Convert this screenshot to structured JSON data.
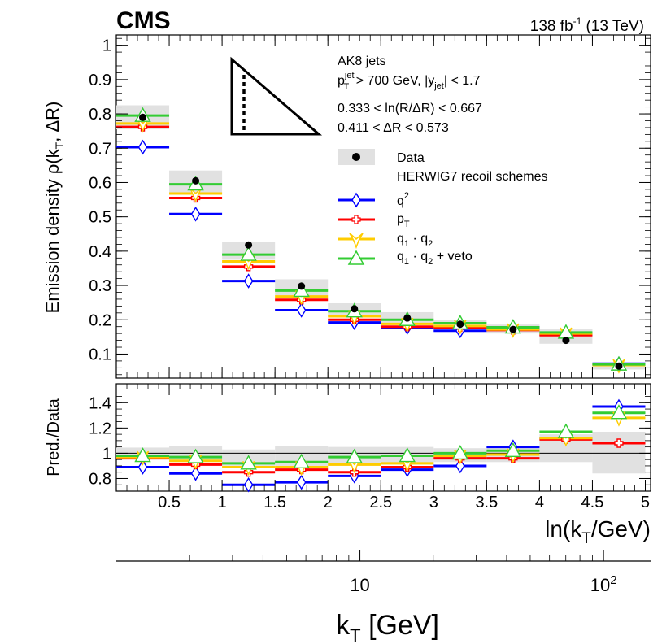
{
  "header": {
    "experiment": "CMS",
    "lumi": "138 fb",
    "lumi_exp": "-1",
    "energy": "(13 TeV)"
  },
  "colors": {
    "data": "#000000",
    "data_band": "#e1e1e1",
    "q2": "#0000ff",
    "pt": "#ff0000",
    "q1q2": "#ffcc00",
    "q1q2veto": "#33cc33"
  },
  "annotations": {
    "jets": "AK8 jets",
    "cut1_a": "p",
    "cut1_sup": "jet",
    "cut1_sub": "T",
    "cut1_b": " > 700 GeV, |y",
    "cut1_sub2": "jet",
    "cut1_c": "| < 1.7",
    "cut2": "0.333 < ln(R/ΔR) < 0.667",
    "cut3": "0.411 < ΔR < 0.573"
  },
  "legend": {
    "data": "Data",
    "group_title": "HERWIG7 recoil schemes",
    "q2_base": "q",
    "q2_sup": "2",
    "pt_base": "p",
    "pt_sub": "T",
    "q1q2_a": "q",
    "q1q2_sub1": "1",
    "q1q2_dot": " · q",
    "q1q2_sub2": "2",
    "veto_a": "q",
    "veto_sub1": "1",
    "veto_dot": " · q",
    "veto_sub2": "2",
    "veto_tail": " + veto"
  },
  "chart_data": {
    "type": "histogram",
    "x_edges": [
      0.0,
      0.5,
      1.0,
      1.5,
      2.0,
      2.5,
      3.0,
      3.5,
      4.0,
      4.5,
      5.0
    ],
    "top_panel": {
      "ylabel_a": "Emission density ρ(k",
      "ylabel_sub": "T",
      "ylabel_b": ", ΔR)",
      "ylim": [
        0.03,
        1.03
      ],
      "yticks": [
        0.1,
        0.2,
        0.3,
        0.4,
        0.5,
        0.6,
        0.7,
        0.8,
        0.9,
        1.0
      ],
      "ytick_labels": [
        "0.1",
        "0.2",
        "0.3",
        "0.4",
        "0.5",
        "0.6",
        "0.7",
        "0.8",
        "0.9",
        "1"
      ],
      "data_values": [
        0.79,
        0.605,
        0.418,
        0.298,
        0.232,
        0.205,
        0.187,
        0.172,
        0.14,
        0.065
      ],
      "data_band": [
        [
          0.755,
          0.825
        ],
        [
          0.568,
          0.635
        ],
        [
          0.375,
          0.428
        ],
        [
          0.27,
          0.318
        ],
        [
          0.21,
          0.248
        ],
        [
          0.188,
          0.222
        ],
        [
          0.174,
          0.2
        ],
        [
          0.16,
          0.186
        ],
        [
          0.13,
          0.172
        ],
        [
          0.055,
          0.075
        ]
      ],
      "series": [
        {
          "name": "q2",
          "values": [
            0.703,
            0.508,
            0.313,
            0.228,
            0.192,
            0.178,
            0.168,
            0.178,
            0.157,
            0.072
          ]
        },
        {
          "name": "pT",
          "values": [
            0.762,
            0.555,
            0.355,
            0.258,
            0.2,
            0.18,
            0.178,
            0.17,
            0.155,
            0.068
          ]
        },
        {
          "name": "q1q2",
          "values": [
            0.772,
            0.568,
            0.37,
            0.268,
            0.21,
            0.188,
            0.182,
            0.172,
            0.16,
            0.068
          ]
        },
        {
          "name": "q1q2veto",
          "values": [
            0.795,
            0.595,
            0.39,
            0.285,
            0.225,
            0.2,
            0.19,
            0.178,
            0.163,
            0.07
          ]
        }
      ]
    },
    "ratio_panel": {
      "ylabel": "Pred./Data",
      "ylim": [
        0.7,
        1.55
      ],
      "yticks": [
        0.8,
        1.0,
        1.2,
        1.4
      ],
      "ytick_labels": [
        "0.8",
        "1",
        "1.2",
        "1.4"
      ],
      "band": [
        [
          0.955,
          1.045
        ],
        [
          0.94,
          1.06
        ],
        [
          0.9,
          1.03
        ],
        [
          0.9,
          1.06
        ],
        [
          0.9,
          1.05
        ],
        [
          0.91,
          1.05
        ],
        [
          0.93,
          1.04
        ],
        [
          0.93,
          1.06
        ],
        [
          0.93,
          1.15
        ],
        [
          0.84,
          1.17
        ]
      ],
      "series": [
        {
          "name": "q2",
          "values": [
            0.89,
            0.84,
            0.75,
            0.77,
            0.82,
            0.87,
            0.9,
            1.05,
            1.12,
            1.37
          ]
        },
        {
          "name": "pT",
          "values": [
            0.96,
            0.91,
            0.85,
            0.87,
            0.85,
            0.89,
            0.96,
            0.96,
            1.11,
            1.08
          ]
        },
        {
          "name": "q1q2",
          "values": [
            0.97,
            0.94,
            0.89,
            0.89,
            0.91,
            0.92,
            0.98,
            0.99,
            1.12,
            1.28
          ]
        },
        {
          "name": "q1q2veto",
          "values": [
            0.98,
            0.97,
            0.92,
            0.93,
            0.97,
            0.98,
            1.0,
            1.02,
            1.17,
            1.32
          ]
        }
      ]
    },
    "x_axis": {
      "ticks": [
        0.5,
        1.0,
        1.5,
        2.0,
        2.5,
        3.0,
        3.5,
        4.0,
        4.5,
        5.0
      ],
      "tick_labels": [
        "0.5",
        "1",
        "1.5",
        "2",
        "2.5",
        "3",
        "3.5",
        "4",
        "4.5",
        "5"
      ],
      "label_a": "ln(k",
      "label_sub": "T",
      "label_b": "/GeV)"
    },
    "kt_axis": {
      "label_a": "k",
      "label_sub": "T",
      "label_b": " [GeV]",
      "major_ticks": [
        10,
        100
      ],
      "major_labels": [
        "10",
        "10"
      ],
      "major_label_sup": [
        "",
        "2"
      ]
    }
  }
}
